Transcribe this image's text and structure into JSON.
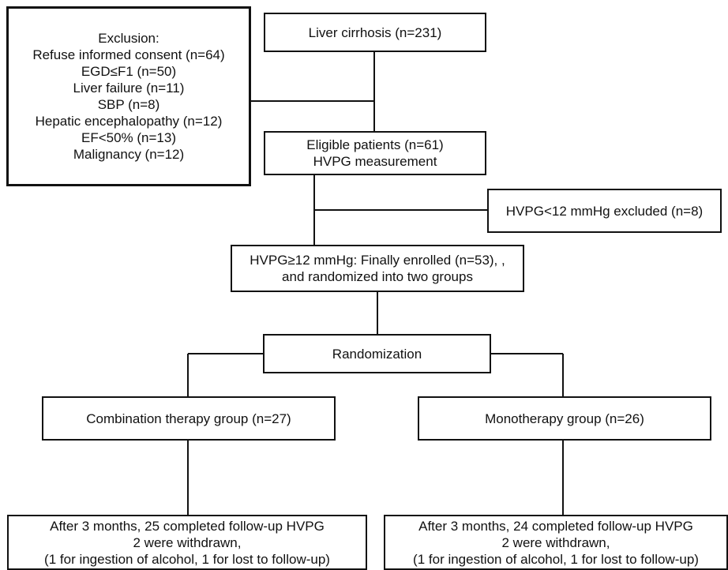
{
  "flowchart": {
    "exclusion": {
      "lines": [
        "Exclusion:",
        "Refuse informed consent (n=64)",
        "EGD≤F1 (n=50)",
        "Liver failure (n=11)",
        "SBP (n=8)",
        "Hepatic encephalopathy (n=12)",
        "EF<50% (n=13)",
        "Malignancy (n=12)"
      ]
    },
    "cirrhosis": {
      "label": "Liver cirrhosis (n=231)"
    },
    "eligible": {
      "lines": [
        "Eligible patients (n=61)",
        "HVPG measurement"
      ]
    },
    "hvpg_excluded": {
      "label": "HVPG<12 mmHg excluded (n=8)"
    },
    "enrolled": {
      "lines": [
        "HVPG≥12 mmHg: Finally enrolled (n=53), ,",
        "and randomized into two groups"
      ]
    },
    "randomization": {
      "label": "Randomization"
    },
    "combination": {
      "label": "Combination therapy group (n=27)"
    },
    "monotherapy": {
      "label": "Monotherapy group (n=26)"
    },
    "combination_followup": {
      "lines": [
        "After 3 months, 25 completed follow-up HVPG",
        "2 were withdrawn,",
        "(1 for ingestion of alcohol, 1 for lost to follow-up)"
      ]
    },
    "monotherapy_followup": {
      "lines": [
        "After 3 months, 24 completed follow-up HVPG",
        "2 were withdrawn,",
        "(1 for ingestion of alcohol, 1 for lost to follow-up)"
      ]
    }
  }
}
